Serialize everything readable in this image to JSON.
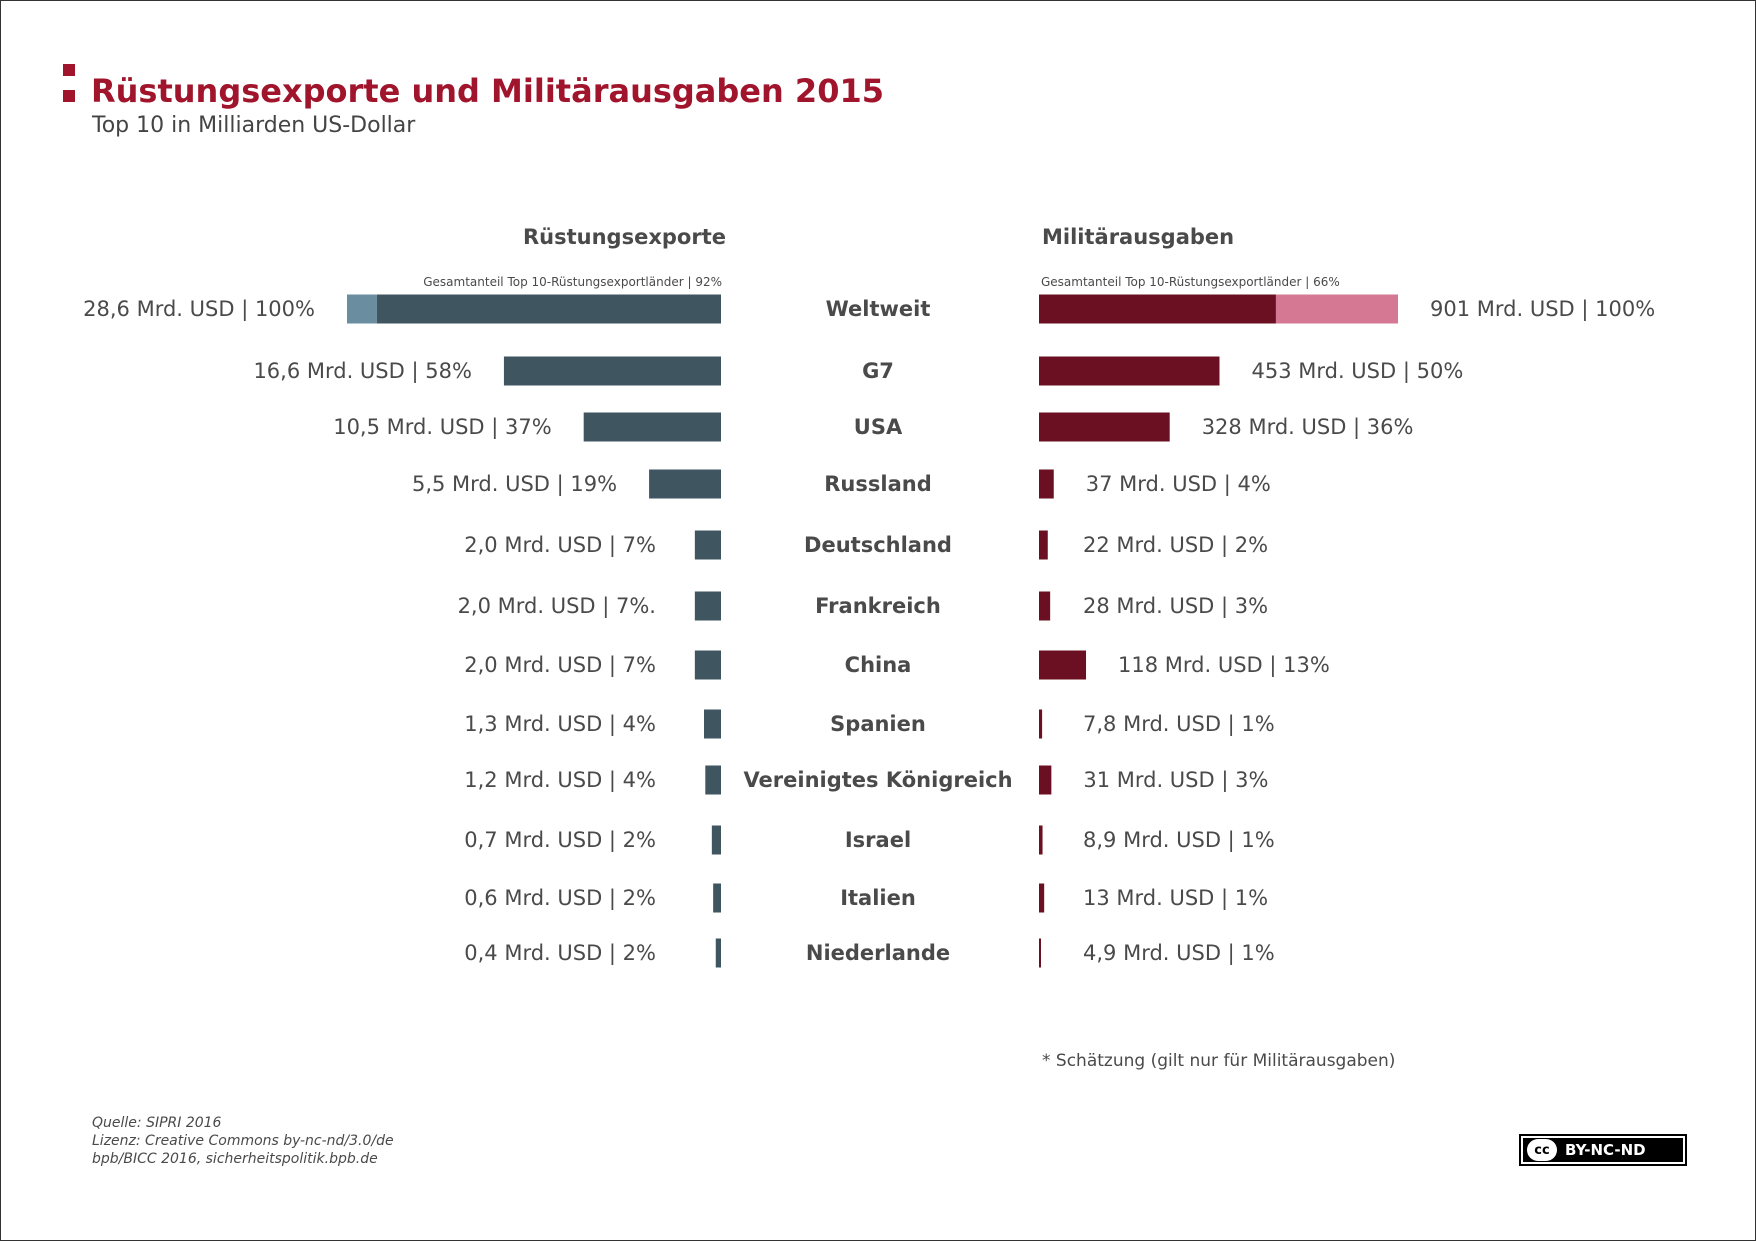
{
  "title": "Rüstungsexporte und Militärausgaben 2015",
  "subtitle": "Top 10 in Milliarden US-Dollar",
  "colors": {
    "brand": "#a0152c",
    "export_bar": "#3f5660",
    "export_rest": "#6a8ea0",
    "spend_bar": "#6b1022",
    "spend_rest": "#d47893",
    "text": "#4a4a4a"
  },
  "chart_data": {
    "type": "bar",
    "title": "Rüstungsexporte und Militärausgaben 2015",
    "subtitle": "Top 10 in Milliarden US-Dollar",
    "left": {
      "heading": "Rüstungsexporte",
      "share_note": "Gesamtanteil Top 10-Rüstungsexportländer | 92%",
      "top10_share_percent": 92,
      "unit": "Mrd. USD",
      "direction": "left"
    },
    "right": {
      "heading": "Militärausgaben",
      "share_note": "Gesamtanteil Top 10-Rüstungsexportländer | 66%",
      "top10_share_percent": 66,
      "unit": "Mrd. USD",
      "direction": "right"
    },
    "rows": [
      {
        "category": "Weltweit",
        "export_value": 28.6,
        "export_label": "28,6 Mrd. USD | 100%",
        "spend_value": 901,
        "spend_label": "901 Mrd. USD | 100%"
      },
      {
        "category": "G7",
        "export_value": 16.6,
        "export_label": "16,6 Mrd. USD | 58%",
        "spend_value": 453,
        "spend_label": "453 Mrd. USD | 50%"
      },
      {
        "category": "USA",
        "export_value": 10.5,
        "export_label": "10,5 Mrd. USD | 37%",
        "spend_value": 328,
        "spend_label": "328 Mrd. USD | 36%"
      },
      {
        "category": "Russland",
        "export_value": 5.5,
        "export_label": "5,5 Mrd. USD | 19%",
        "spend_value": 37,
        "spend_label": "37 Mrd. USD | 4%"
      },
      {
        "category": "Deutschland",
        "export_value": 2.0,
        "export_label": "2,0 Mrd. USD | 7%",
        "spend_value": 22,
        "spend_label": "22 Mrd. USD | 2%"
      },
      {
        "category": "Frankreich",
        "export_value": 2.0,
        "export_label": "2,0 Mrd. USD | 7%.",
        "spend_value": 28,
        "spend_label": "28 Mrd. USD | 3%"
      },
      {
        "category": "China",
        "export_value": 2.0,
        "export_label": "2,0 Mrd. USD | 7%",
        "spend_value": 118,
        "spend_label": "118 Mrd. USD | 13%"
      },
      {
        "category": "Spanien",
        "export_value": 1.3,
        "export_label": "1,3 Mrd. USD | 4%",
        "spend_value": 7.8,
        "spend_label": "7,8 Mrd. USD | 1%"
      },
      {
        "category": "Vereinigtes Königreich",
        "export_value": 1.2,
        "export_label": "1,2 Mrd. USD | 4%",
        "spend_value": 31,
        "spend_label": "31 Mrd. USD | 3%"
      },
      {
        "category": "Israel",
        "export_value": 0.7,
        "export_label": "0,7 Mrd. USD | 2%",
        "spend_value": 8.9,
        "spend_label": "8,9 Mrd. USD | 1%"
      },
      {
        "category": "Italien",
        "export_value": 0.6,
        "export_label": "0,6 Mrd. USD | 2%",
        "spend_value": 13,
        "spend_label": "13 Mrd. USD | 1%"
      },
      {
        "category": "Niederlande",
        "export_value": 0.4,
        "export_label": "0,4 Mrd. USD | 2%",
        "spend_value": 4.9,
        "spend_label": "4,9 Mrd. USD | 1%"
      }
    ]
  },
  "footnote": "* Schätzung (gilt nur für Militärausgaben)",
  "source_lines": [
    "Quelle: SIPRI 2016",
    "Lizenz: Creative Commons by-nc-nd/3.0/de",
    "bpb/BICC 2016, sicherheitspolitik.bpb.de"
  ],
  "license_badge": {
    "icon": "cc",
    "text": "BY-NC-ND"
  }
}
